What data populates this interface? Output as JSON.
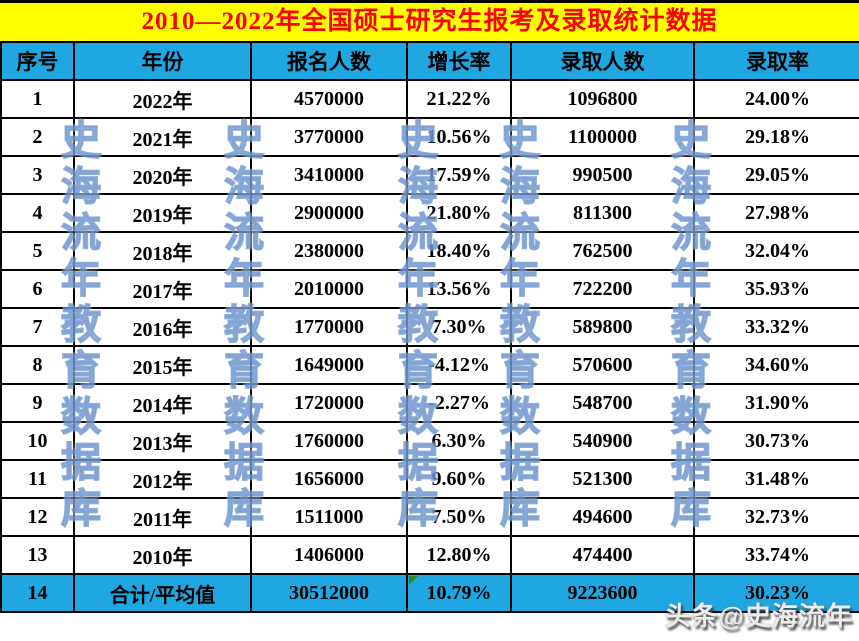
{
  "title": "2010—2022年全国硕士研究生报考及录取统计数据",
  "chart_data": {
    "type": "table",
    "title": "2010—2022年全国硕士研究生报考及录取统计数据",
    "columns": [
      "序号",
      "年份",
      "报名人数",
      "增长率",
      "录取人数",
      "录取率"
    ],
    "rows": [
      [
        "1",
        "2022年",
        "4570000",
        "21.22%",
        "1096800",
        "24.00%"
      ],
      [
        "2",
        "2021年",
        "3770000",
        "10.56%",
        "1100000",
        "29.18%"
      ],
      [
        "3",
        "2020年",
        "3410000",
        "17.59%",
        "990500",
        "29.05%"
      ],
      [
        "4",
        "2019年",
        "2900000",
        "21.80%",
        "811300",
        "27.98%"
      ],
      [
        "5",
        "2018年",
        "2380000",
        "18.40%",
        "762500",
        "32.04%"
      ],
      [
        "6",
        "2017年",
        "2010000",
        "13.56%",
        "722200",
        "35.93%"
      ],
      [
        "7",
        "2016年",
        "1770000",
        "7.30%",
        "589800",
        "33.32%"
      ],
      [
        "8",
        "2015年",
        "1649000",
        "-4.12%",
        "570600",
        "34.60%"
      ],
      [
        "9",
        "2014年",
        "1720000",
        "-2.27%",
        "548700",
        "31.90%"
      ],
      [
        "10",
        "2013年",
        "1760000",
        "6.30%",
        "540900",
        "30.73%"
      ],
      [
        "11",
        "2012年",
        "1656000",
        "9.60%",
        "521300",
        "31.48%"
      ],
      [
        "12",
        "2011年",
        "1511000",
        "7.50%",
        "494600",
        "32.73%"
      ],
      [
        "13",
        "2010年",
        "1406000",
        "12.80%",
        "474400",
        "33.74%"
      ],
      [
        "14",
        "合计/平均值",
        "30512000",
        "10.79%",
        "9223600",
        "30.23%"
      ]
    ],
    "summary_row_index": 13,
    "error_marker_cell": {
      "row_index": 13,
      "col_index": 3
    }
  },
  "watermark": {
    "vertical_text": "史海流年教育数据库",
    "column_count": 5,
    "badge_text": "头条@史海流年"
  },
  "colors": {
    "title_bg": "#FFFF00",
    "title_text": "#FF0000",
    "header_bg": "#1FA7E1",
    "summary_bg": "#1FA7E1",
    "row_bg": "#FFFFFF",
    "cell_text": "#000000",
    "border": "#000000",
    "error_marker": "#2E8B22",
    "watermark_blue": "#9FC3EB"
  }
}
